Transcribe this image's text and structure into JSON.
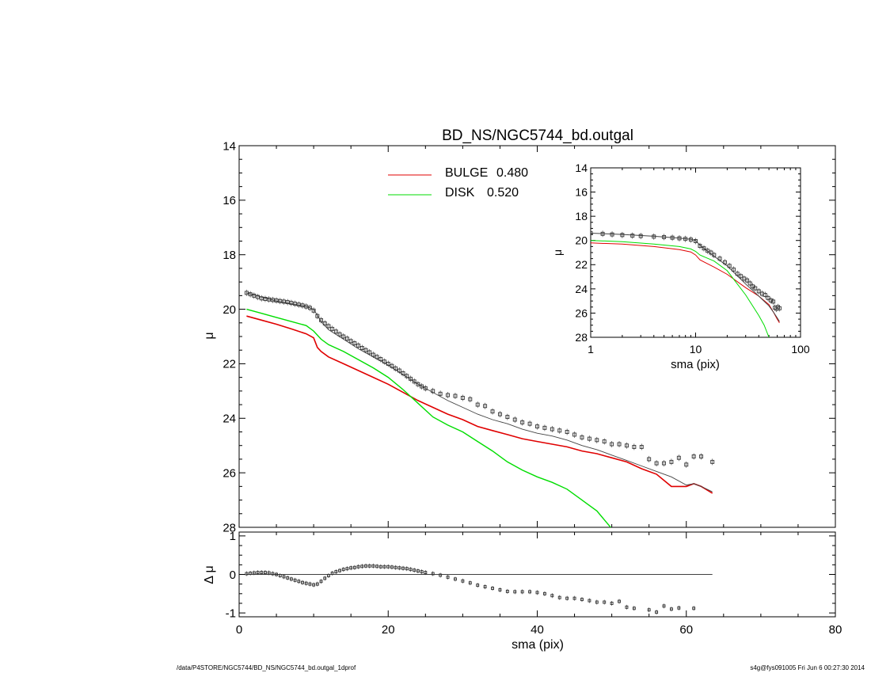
{
  "footer": {
    "path": "/data/P4STORE/NGC5744/BD_NS/NGC5744_bd.outgal_1dprof",
    "stamp": "s4g@fys091005  Fri Jun  6 00:27:30 2014"
  },
  "colors": {
    "bulge": "#e00000",
    "disk": "#00dd00",
    "model": "#444444",
    "data": "#333333"
  },
  "chart_data": [
    {
      "id": "main",
      "type": "line",
      "title": "BD_NS/NGC5744_bd.outgal",
      "xlabel": "sma (pix)",
      "ylabel": "μ",
      "xlim": [
        0,
        80
      ],
      "ylim": [
        28,
        14
      ],
      "y_inverted": true,
      "xticks": [
        0,
        20,
        40,
        60,
        80
      ],
      "yticks": [
        14,
        16,
        18,
        20,
        22,
        24,
        26,
        28
      ],
      "legend": [
        {
          "label": "BULGE",
          "value": "0.480",
          "color": "#e00000"
        },
        {
          "label": "DISK",
          "value": "0.520",
          "color": "#00dd00"
        }
      ],
      "series": [
        {
          "name": "BULGE",
          "kind": "line",
          "color": "#e00000",
          "x": [
            1,
            3,
            5,
            7,
            9,
            10,
            10.5,
            11,
            12,
            14,
            16,
            18,
            20,
            22,
            24,
            26,
            28,
            30,
            32,
            34,
            36,
            38,
            40,
            42,
            44,
            46,
            48,
            50,
            52,
            54,
            56,
            58,
            60,
            61,
            62,
            63.5
          ],
          "y": [
            20.25,
            20.4,
            20.55,
            20.72,
            20.9,
            21.05,
            21.4,
            21.55,
            21.75,
            22.0,
            22.25,
            22.5,
            22.75,
            23.05,
            23.35,
            23.6,
            23.85,
            24.05,
            24.3,
            24.45,
            24.6,
            24.75,
            24.85,
            24.95,
            25.05,
            25.2,
            25.3,
            25.45,
            25.6,
            25.85,
            26.05,
            26.5,
            26.5,
            26.4,
            26.5,
            26.75
          ]
        },
        {
          "name": "DISK",
          "kind": "line",
          "color": "#00dd00",
          "x": [
            1,
            3,
            5,
            7,
            9,
            10,
            11,
            12,
            14,
            16,
            18,
            20,
            22,
            24,
            26,
            28,
            30,
            32,
            34,
            36,
            38,
            40,
            42,
            44,
            46,
            48,
            50
          ],
          "y": [
            20.0,
            20.15,
            20.3,
            20.45,
            20.6,
            20.8,
            21.1,
            21.3,
            21.55,
            21.85,
            22.15,
            22.5,
            22.95,
            23.45,
            23.95,
            24.25,
            24.5,
            24.85,
            25.2,
            25.6,
            25.9,
            26.15,
            26.35,
            26.6,
            27.0,
            27.4,
            28.05
          ]
        },
        {
          "name": "",
          "kind": "line",
          "color": "#444444",
          "x": [
            1,
            3,
            5,
            7,
            9,
            10,
            11,
            12,
            14,
            16,
            18,
            20,
            22,
            24,
            26,
            28,
            30,
            32,
            34,
            36,
            38,
            40,
            42,
            44,
            46,
            48,
            50,
            52,
            54,
            56,
            58,
            60,
            61,
            62,
            63.5
          ],
          "y": [
            19.4,
            19.55,
            19.7,
            19.8,
            19.9,
            20.0,
            20.45,
            20.75,
            21.1,
            21.45,
            21.75,
            22.05,
            22.4,
            22.75,
            23.05,
            23.35,
            23.6,
            23.85,
            24.05,
            24.2,
            24.4,
            24.55,
            24.65,
            24.8,
            25.0,
            25.15,
            25.35,
            25.55,
            25.75,
            25.95,
            26.15,
            26.45,
            26.4,
            26.5,
            26.7
          ]
        },
        {
          "name": "",
          "kind": "points",
          "color": "#333333",
          "x": [
            1,
            1.5,
            2,
            2.5,
            3,
            3.5,
            4,
            4.5,
            5,
            5.5,
            6,
            6.5,
            7,
            7.5,
            8,
            8.5,
            9,
            9.5,
            10,
            10.5,
            11,
            11.5,
            12,
            12.5,
            13,
            13.5,
            14,
            14.5,
            15,
            15.5,
            16,
            16.5,
            17,
            17.5,
            18,
            18.5,
            19,
            19.5,
            20,
            20.5,
            21,
            21.5,
            22,
            22.5,
            23,
            23.5,
            24,
            24.5,
            25,
            26,
            27,
            28,
            29,
            30,
            31,
            32,
            33,
            34,
            35,
            36,
            37,
            38,
            39,
            40,
            41,
            42,
            43,
            44,
            45,
            46,
            47,
            48,
            49,
            50,
            51,
            52,
            53,
            54,
            55,
            56,
            57,
            58,
            59,
            60,
            61,
            62,
            63.5
          ],
          "y": [
            19.4,
            19.45,
            19.5,
            19.55,
            19.6,
            19.62,
            19.64,
            19.66,
            19.68,
            19.7,
            19.72,
            19.74,
            19.77,
            19.8,
            19.83,
            19.86,
            19.9,
            19.95,
            20.05,
            20.25,
            20.4,
            20.52,
            20.62,
            20.72,
            20.82,
            20.92,
            21.0,
            21.08,
            21.17,
            21.25,
            21.33,
            21.42,
            21.5,
            21.58,
            21.67,
            21.75,
            21.83,
            21.92,
            22.0,
            22.08,
            22.17,
            22.25,
            22.35,
            22.45,
            22.55,
            22.65,
            22.75,
            22.83,
            22.9,
            23.0,
            23.1,
            23.15,
            23.18,
            23.25,
            23.3,
            23.5,
            23.55,
            23.75,
            23.85,
            23.95,
            24.05,
            24.15,
            24.2,
            24.3,
            24.35,
            24.4,
            24.45,
            24.5,
            24.6,
            24.7,
            24.75,
            24.8,
            24.85,
            24.95,
            24.95,
            25.0,
            25.05,
            25.05,
            25.5,
            25.65,
            25.65,
            25.6,
            25.45,
            25.7,
            25.4,
            25.4,
            25.6
          ]
        }
      ]
    },
    {
      "id": "inset",
      "type": "line",
      "title": "",
      "xlabel": "sma (pix)",
      "ylabel": "μ",
      "xscale": "log",
      "xlim": [
        1,
        100
      ],
      "ylim": [
        28,
        14
      ],
      "y_inverted": true,
      "xticks": [
        1,
        10,
        100
      ],
      "yticks": [
        14,
        16,
        18,
        20,
        22,
        24,
        26,
        28
      ],
      "series": [
        {
          "name": "BULGE",
          "kind": "line",
          "color": "#e00000",
          "x": [
            1,
            2,
            4,
            7,
            9,
            10,
            11,
            15,
            20,
            30,
            40,
            50,
            55,
            60,
            63
          ],
          "y": [
            20.2,
            20.3,
            20.5,
            20.75,
            20.95,
            21.2,
            21.6,
            22.2,
            22.8,
            23.9,
            24.6,
            25.3,
            25.9,
            26.5,
            26.8
          ]
        },
        {
          "name": "DISK",
          "kind": "line",
          "color": "#00dd00",
          "x": [
            1,
            2,
            4,
            7,
            9,
            10,
            11,
            15,
            20,
            30,
            40,
            45,
            50
          ],
          "y": [
            20.0,
            20.1,
            20.3,
            20.5,
            20.7,
            20.9,
            21.2,
            21.7,
            22.5,
            24.5,
            26.2,
            27.0,
            28.0
          ]
        },
        {
          "name": "",
          "kind": "line",
          "color": "#444444",
          "x": [
            1,
            2,
            4,
            7,
            9,
            10,
            11,
            15,
            20,
            30,
            40,
            50,
            55,
            60,
            63
          ],
          "y": [
            19.4,
            19.5,
            19.65,
            19.8,
            19.9,
            20.0,
            20.4,
            21.3,
            22.1,
            23.6,
            24.6,
            25.4,
            25.9,
            26.4,
            26.7
          ]
        },
        {
          "name": "",
          "kind": "points",
          "color": "#333333",
          "x": [
            1,
            1.3,
            1.6,
            2,
            2.5,
            3,
            4,
            5,
            6,
            7,
            8,
            9,
            10,
            11,
            12,
            13,
            14,
            15,
            17,
            19,
            21,
            23,
            25,
            27,
            29,
            31,
            33,
            35,
            37,
            40,
            43,
            46,
            49,
            52,
            55,
            57,
            59,
            61,
            63
          ],
          "y": [
            19.4,
            19.45,
            19.5,
            19.55,
            19.6,
            19.63,
            19.68,
            19.72,
            19.77,
            19.82,
            19.87,
            19.93,
            20.05,
            20.45,
            20.65,
            20.85,
            21.0,
            21.2,
            21.5,
            21.8,
            22.1,
            22.4,
            22.75,
            22.95,
            23.15,
            23.3,
            23.55,
            23.8,
            23.95,
            24.2,
            24.4,
            24.5,
            24.75,
            24.95,
            25.05,
            25.55,
            25.65,
            25.5,
            25.6
          ]
        }
      ]
    },
    {
      "id": "residual",
      "type": "scatter",
      "title": "",
      "xlabel": "sma (pix)",
      "ylabel": "Δ μ",
      "xlim": [
        0,
        80
      ],
      "ylim": [
        -1.1,
        1.1
      ],
      "xticks": [
        0,
        20,
        40,
        60,
        80
      ],
      "yticks": [
        -1,
        0,
        1
      ],
      "zero_line": {
        "x": [
          1,
          63.5
        ],
        "y": 0
      },
      "series": [
        {
          "name": "",
          "kind": "points",
          "color": "#333333",
          "x": [
            1,
            1.5,
            2,
            2.5,
            3,
            3.5,
            4,
            4.5,
            5,
            5.5,
            6,
            6.5,
            7,
            7.5,
            8,
            8.5,
            9,
            9.5,
            10,
            10.5,
            11,
            11.5,
            12,
            12.5,
            13,
            13.5,
            14,
            14.5,
            15,
            15.5,
            16,
            16.5,
            17,
            17.5,
            18,
            18.5,
            19,
            19.5,
            20,
            20.5,
            21,
            21.5,
            22,
            22.5,
            23,
            23.5,
            24,
            24.5,
            25,
            26,
            27,
            28,
            29,
            30,
            31,
            32,
            33,
            34,
            35,
            36,
            37,
            38,
            39,
            40,
            41,
            42,
            43,
            44,
            45,
            46,
            47,
            48,
            49,
            50,
            51,
            52,
            53,
            55,
            56,
            57,
            58,
            59,
            61
          ],
          "y": [
            0.02,
            0.03,
            0.04,
            0.05,
            0.05,
            0.05,
            0.04,
            0.02,
            0.0,
            -0.03,
            -0.06,
            -0.09,
            -0.12,
            -0.15,
            -0.18,
            -0.21,
            -0.23,
            -0.25,
            -0.27,
            -0.25,
            -0.18,
            -0.1,
            -0.03,
            0.03,
            0.07,
            0.1,
            0.13,
            0.15,
            0.17,
            0.18,
            0.2,
            0.21,
            0.22,
            0.22,
            0.22,
            0.21,
            0.2,
            0.2,
            0.2,
            0.19,
            0.18,
            0.17,
            0.16,
            0.15,
            0.13,
            0.11,
            0.09,
            0.07,
            0.05,
            0.02,
            -0.02,
            -0.07,
            -0.12,
            -0.17,
            -0.22,
            -0.28,
            -0.32,
            -0.36,
            -0.4,
            -0.44,
            -0.45,
            -0.45,
            -0.45,
            -0.47,
            -0.5,
            -0.55,
            -0.6,
            -0.62,
            -0.62,
            -0.65,
            -0.68,
            -0.72,
            -0.72,
            -0.75,
            -0.7,
            -0.85,
            -0.88,
            -0.92,
            -0.98,
            -0.82,
            -0.9,
            -0.87,
            -0.88
          ]
        }
      ]
    }
  ]
}
